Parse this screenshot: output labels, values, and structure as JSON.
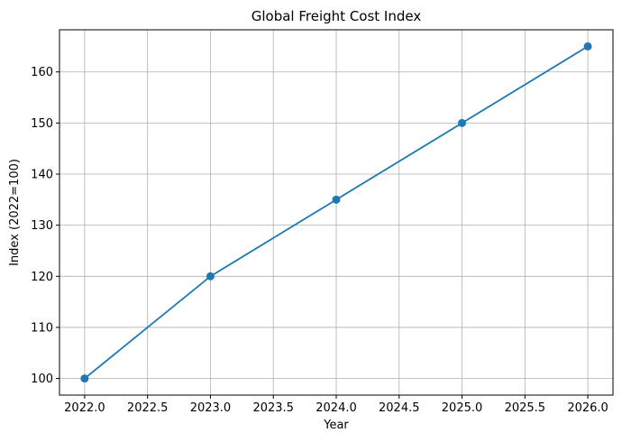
{
  "chart_data": {
    "type": "line",
    "title": "Global Freight Cost Index",
    "xlabel": "Year",
    "ylabel": "Index (2022=100)",
    "x": [
      2022,
      2023,
      2024,
      2025,
      2026
    ],
    "series": [
      {
        "values": [
          100,
          120,
          135,
          150,
          165
        ],
        "color": "#1f77b4",
        "marker": "circle"
      }
    ],
    "xlim": [
      2021.8,
      2026.2
    ],
    "ylim": [
      96.75,
      168.25
    ],
    "xticks": [
      "2022.0",
      "2022.5",
      "2023.0",
      "2023.5",
      "2024.0",
      "2024.5",
      "2025.0",
      "2025.5",
      "2026.0"
    ],
    "yticks": [
      "100",
      "110",
      "120",
      "130",
      "140",
      "150",
      "160"
    ],
    "grid": true,
    "legend": "none"
  }
}
